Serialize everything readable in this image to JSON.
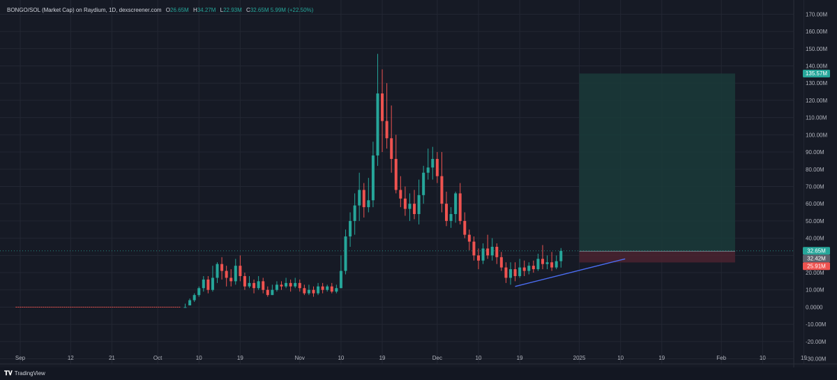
{
  "legend": {
    "symbol": "BONGO/SOL (Market Cap) on Raydium, 1D, dexscreener.com",
    "open_label": "O",
    "open": "26.65M",
    "high_label": "H",
    "high": "34.27M",
    "low_label": "L",
    "low": "22.93M",
    "close_label": "C",
    "close": "32.65M",
    "change": "5.99M (+22.50%)"
  },
  "brand": {
    "name": "TradingView"
  },
  "colors": {
    "up": "#26a69a",
    "down": "#ef5350",
    "background": "#161a25",
    "trendline": "#4c6ef5",
    "target_zone": "#1a3b3a",
    "stop_zone": "#4a2330"
  },
  "chart_data": {
    "type": "candlestick",
    "title": "BONGO/SOL (Market Cap) on Raydium, 1D, dexscreener.com",
    "y_unit": "M",
    "ylim": [
      -33,
      175
    ],
    "y_ticks": [
      {
        "v": 170,
        "label": "170.00M"
      },
      {
        "v": 160,
        "label": "160.00M"
      },
      {
        "v": 150,
        "label": "150.00M"
      },
      {
        "v": 140,
        "label": "140.00M"
      },
      {
        "v": 130,
        "label": "130.00M"
      },
      {
        "v": 120,
        "label": "120.00M"
      },
      {
        "v": 110,
        "label": "110.00M"
      },
      {
        "v": 100,
        "label": "100.00M"
      },
      {
        "v": 90,
        "label": "90.00M"
      },
      {
        "v": 80,
        "label": "80.00M"
      },
      {
        "v": 70,
        "label": "70.00M"
      },
      {
        "v": 60,
        "label": "60.00M"
      },
      {
        "v": 50,
        "label": "50.00M"
      },
      {
        "v": 40,
        "label": "40.00M"
      },
      {
        "v": 30,
        "label": "30.00M"
      },
      {
        "v": 20,
        "label": "20.00M"
      },
      {
        "v": 10,
        "label": "10.00M"
      },
      {
        "v": 0,
        "label": "0.0000"
      },
      {
        "v": -10,
        "label": "-10.00M"
      },
      {
        "v": -20,
        "label": "-20.00M"
      },
      {
        "v": -30,
        "label": "-30.00M"
      }
    ],
    "x_ticks": [
      {
        "date": "2024-09-01",
        "label": "Sep"
      },
      {
        "date": "2024-09-12",
        "label": "12"
      },
      {
        "date": "2024-09-21",
        "label": "21"
      },
      {
        "date": "2024-10-01",
        "label": "Oct"
      },
      {
        "date": "2024-10-10",
        "label": "10"
      },
      {
        "date": "2024-10-19",
        "label": "19"
      },
      {
        "date": "2024-11-01",
        "label": "Nov"
      },
      {
        "date": "2024-11-10",
        "label": "10"
      },
      {
        "date": "2024-11-19",
        "label": "19"
      },
      {
        "date": "2024-12-01",
        "label": "Dec"
      },
      {
        "date": "2024-12-10",
        "label": "10"
      },
      {
        "date": "2024-12-19",
        "label": "19"
      },
      {
        "date": "2025-01-01",
        "label": "2025"
      },
      {
        "date": "2025-01-10",
        "label": "10"
      },
      {
        "date": "2025-01-19",
        "label": "19"
      },
      {
        "date": "2025-02-01",
        "label": "Feb"
      },
      {
        "date": "2025-02-10",
        "label": "10"
      },
      {
        "date": "2025-02-19",
        "label": "19"
      }
    ],
    "flat_line": {
      "from": "2024-08-31",
      "to": "2024-10-06",
      "value": 0
    },
    "candles_start": "2024-10-07",
    "candles": [
      [
        0,
        0,
        2,
        0
      ],
      [
        1,
        4,
        5,
        1
      ],
      [
        4,
        7,
        8,
        3
      ],
      [
        7,
        11,
        12,
        6
      ],
      [
        11,
        16,
        18,
        9
      ],
      [
        16,
        10,
        18,
        8
      ],
      [
        10,
        17,
        24,
        9
      ],
      [
        17,
        25,
        26,
        14
      ],
      [
        25,
        21,
        29,
        16
      ],
      [
        21,
        17,
        24,
        12
      ],
      [
        17,
        15,
        22,
        12
      ],
      [
        15,
        24,
        28,
        13
      ],
      [
        24,
        18,
        30,
        15
      ],
      [
        18,
        12,
        20,
        10
      ],
      [
        12,
        14,
        18,
        11
      ],
      [
        14,
        11,
        16,
        8
      ],
      [
        11,
        15,
        18,
        10
      ],
      [
        15,
        10,
        17,
        8
      ],
      [
        10,
        7,
        12,
        6
      ],
      [
        7,
        10,
        13,
        7
      ],
      [
        10,
        13,
        15,
        9
      ],
      [
        13,
        12,
        15,
        10
      ],
      [
        12,
        14,
        17,
        11
      ],
      [
        14,
        12,
        16,
        9
      ],
      [
        12,
        14,
        17,
        11
      ],
      [
        14,
        11,
        16,
        9
      ],
      [
        11,
        8,
        13,
        7
      ],
      [
        8,
        10,
        13,
        7
      ],
      [
        10,
        8,
        12,
        6
      ],
      [
        8,
        12,
        14,
        7
      ],
      [
        12,
        10,
        14,
        8
      ],
      [
        10,
        12,
        13,
        9
      ],
      [
        12,
        9,
        14,
        8
      ],
      [
        9,
        11,
        13,
        8
      ],
      [
        11,
        21,
        30,
        11
      ],
      [
        21,
        41,
        45,
        19
      ],
      [
        41,
        50,
        55,
        35
      ],
      [
        50,
        59,
        66,
        42
      ],
      [
        59,
        68,
        78,
        50
      ],
      [
        68,
        58,
        72,
        52
      ],
      [
        58,
        62,
        75,
        55
      ],
      [
        62,
        88,
        96,
        58
      ],
      [
        88,
        124,
        147,
        82
      ],
      [
        124,
        108,
        138,
        90
      ],
      [
        108,
        98,
        130,
        92
      ],
      [
        98,
        86,
        117,
        78
      ],
      [
        86,
        68,
        100,
        66
      ],
      [
        68,
        63,
        76,
        58
      ],
      [
        63,
        57,
        70,
        53
      ],
      [
        57,
        60,
        66,
        50
      ],
      [
        60,
        54,
        68,
        51
      ],
      [
        54,
        65,
        74,
        48
      ],
      [
        65,
        78,
        82,
        60
      ],
      [
        78,
        81,
        92,
        74
      ],
      [
        81,
        86,
        93,
        74
      ],
      [
        86,
        76,
        90,
        72
      ],
      [
        76,
        60,
        90,
        55
      ],
      [
        60,
        50,
        67,
        47
      ],
      [
        50,
        54,
        58,
        46
      ],
      [
        54,
        66,
        67,
        49
      ],
      [
        66,
        50,
        72,
        48
      ],
      [
        50,
        42,
        55,
        40
      ],
      [
        42,
        38,
        45,
        33
      ],
      [
        38,
        30,
        41,
        27
      ],
      [
        30,
        27,
        34,
        22
      ],
      [
        27,
        34,
        37,
        25
      ],
      [
        34,
        30,
        42,
        28
      ],
      [
        30,
        35,
        40,
        27
      ],
      [
        35,
        29,
        37,
        25
      ],
      [
        29,
        23,
        32,
        21
      ],
      [
        23,
        17,
        26,
        14
      ],
      [
        17,
        22,
        26,
        13
      ],
      [
        22,
        18,
        26,
        15
      ],
      [
        18,
        23,
        28,
        17
      ],
      [
        23,
        21,
        27,
        18
      ],
      [
        21,
        24,
        26,
        19
      ],
      [
        24,
        22,
        27,
        20
      ],
      [
        22,
        28,
        31,
        21
      ],
      [
        28,
        25,
        36,
        22
      ],
      [
        25,
        26,
        30,
        22
      ],
      [
        26,
        23,
        32,
        21
      ],
      [
        23,
        26.65,
        30,
        22
      ],
      [
        26.65,
        32.65,
        34.27,
        22.93
      ]
    ],
    "trendline": {
      "from": {
        "date": "2024-12-18",
        "value": 12
      },
      "to": {
        "date": "2025-01-11",
        "value": 28
      }
    },
    "position": {
      "entry_date": "2025-01-01",
      "exit_date": "2025-02-04",
      "entry": 32.42,
      "target": 135.57,
      "stop": 25.91
    },
    "price_badges": [
      {
        "label": "135.57M",
        "value": 135.57,
        "color": "#26a69a"
      },
      {
        "label": "32.65M",
        "value": 32.65,
        "color": "#26a69a"
      },
      {
        "label": "32.42M",
        "value": 32.42,
        "color": "#5d606b"
      },
      {
        "label": "25.91M",
        "value": 25.91,
        "color": "#ef5350"
      }
    ],
    "current_price": 32.65,
    "grid": true
  }
}
